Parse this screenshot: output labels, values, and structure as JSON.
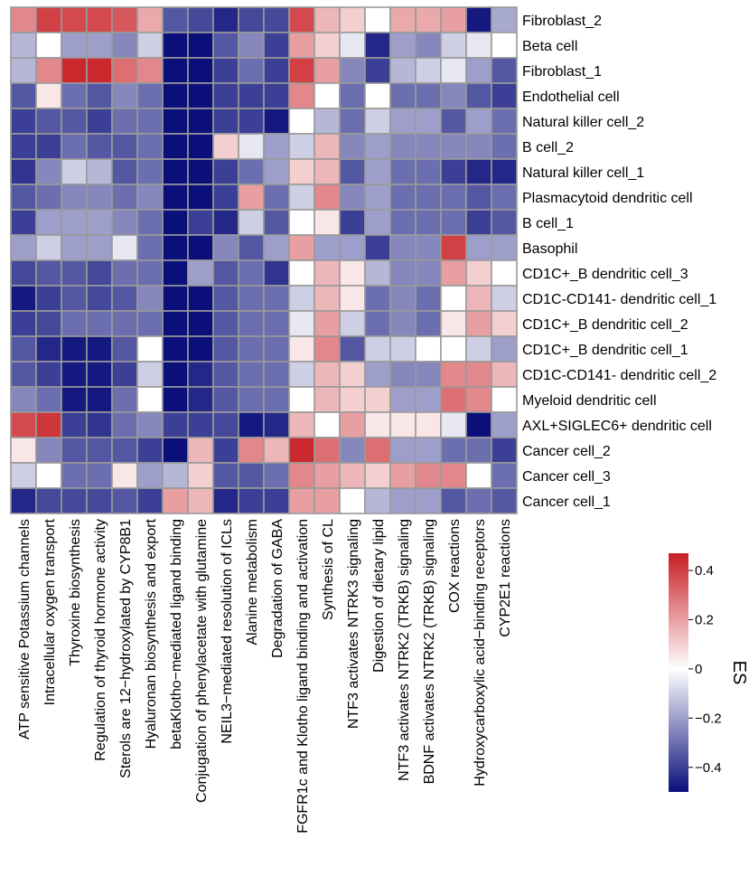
{
  "chart_data": {
    "type": "heatmap",
    "title": "",
    "rows": [
      "Fibroblast_2",
      "Beta cell",
      "Fibroblast_1",
      "Endothelial cell",
      "Natural killer cell_2",
      "B cell_2",
      "Natural killer cell_1",
      "Plasmacytoid dendritic cell",
      "B cell_1",
      "Basophil",
      "CD1C+_B dendritic cell_3",
      "CD1C-CD141- dendritic cell_1",
      "CD1C+_B dendritic cell_2",
      "CD1C+_B dendritic cell_1",
      "CD1C-CD141- dendritic cell_2",
      "Myeloid dendritic cell",
      "AXL+SIGLEC6+ dendritic cell",
      "Cancer cell_2",
      "Cancer cell_3",
      "Cancer cell_1"
    ],
    "columns": [
      "ATP sensitive Potassium channels",
      "Intracellular oxygen transport",
      "Thyroxine biosynthesis",
      "Regulation of thyroid hormone activity",
      "Sterols are 12−hydroxylated by CYP8B1",
      "Hyaluronan biosynthesis and export",
      "betaKlotho−mediated ligand binding",
      "Conjugation of phenylacetate with glutamine",
      "NEIL3−mediated resolution of ICLs",
      "Alanine metabolism",
      "Degradation of GABA",
      "FGFR1c and Klotho ligand binding and activation",
      "Synthesis of CL",
      "NTF3 activates NTRK3 signaling",
      "Digestion of dietary lipid",
      "NTF3 activates NTRK2 (TRKB) signaling",
      "BDNF activates NTRK2 (TRKB) signaling",
      "COX reactions",
      "Hydroxycarboxylic acid−binding receptors",
      "CYP2E1 reactions"
    ],
    "values": [
      [
        0.25,
        0.4,
        0.38,
        0.38,
        0.35,
        0.18,
        -0.35,
        -0.38,
        -0.45,
        -0.38,
        -0.38,
        0.38,
        0.15,
        0.1,
        0.0,
        0.18,
        0.18,
        0.2,
        -0.48,
        -0.18
      ],
      [
        -0.15,
        0.0,
        -0.2,
        -0.2,
        -0.25,
        -0.1,
        -0.5,
        -0.5,
        -0.35,
        -0.25,
        -0.4,
        0.2,
        0.1,
        -0.05,
        -0.45,
        -0.2,
        -0.25,
        -0.1,
        -0.05,
        0.0
      ],
      [
        -0.15,
        0.25,
        0.45,
        0.45,
        0.3,
        0.25,
        -0.5,
        -0.5,
        -0.4,
        -0.3,
        -0.4,
        0.4,
        0.2,
        -0.25,
        -0.4,
        -0.15,
        -0.1,
        -0.05,
        -0.2,
        -0.35
      ],
      [
        -0.35,
        0.05,
        -0.3,
        -0.35,
        -0.25,
        -0.3,
        -0.5,
        -0.5,
        -0.4,
        -0.4,
        -0.4,
        0.25,
        0.0,
        -0.3,
        0.0,
        -0.3,
        -0.3,
        -0.25,
        -0.35,
        -0.4
      ],
      [
        -0.4,
        -0.35,
        -0.35,
        -0.4,
        -0.3,
        -0.3,
        -0.5,
        -0.5,
        -0.4,
        -0.4,
        -0.48,
        0.0,
        -0.15,
        -0.3,
        -0.1,
        -0.2,
        -0.2,
        -0.35,
        -0.2,
        -0.3
      ],
      [
        -0.4,
        -0.4,
        -0.3,
        -0.35,
        -0.35,
        -0.3,
        -0.5,
        -0.5,
        0.1,
        -0.05,
        -0.2,
        -0.1,
        0.15,
        -0.25,
        -0.2,
        -0.25,
        -0.25,
        -0.25,
        -0.25,
        -0.3
      ],
      [
        -0.42,
        -0.25,
        -0.1,
        -0.15,
        -0.35,
        -0.3,
        -0.5,
        -0.5,
        -0.4,
        -0.3,
        -0.2,
        0.1,
        0.15,
        -0.35,
        -0.2,
        -0.3,
        -0.3,
        -0.4,
        -0.45,
        -0.45
      ],
      [
        -0.35,
        -0.3,
        -0.25,
        -0.25,
        -0.3,
        -0.25,
        -0.5,
        -0.5,
        -0.4,
        0.2,
        -0.3,
        -0.1,
        0.25,
        -0.25,
        -0.2,
        -0.3,
        -0.3,
        -0.3,
        -0.35,
        -0.3
      ],
      [
        -0.4,
        -0.2,
        -0.2,
        -0.2,
        -0.25,
        -0.3,
        -0.5,
        -0.4,
        -0.45,
        -0.1,
        -0.35,
        0.0,
        0.05,
        -0.4,
        -0.2,
        -0.3,
        -0.3,
        -0.3,
        -0.4,
        -0.35
      ],
      [
        -0.2,
        -0.1,
        -0.2,
        -0.2,
        -0.05,
        -0.3,
        -0.5,
        -0.5,
        -0.25,
        -0.35,
        -0.2,
        0.2,
        -0.2,
        -0.2,
        -0.4,
        -0.25,
        -0.25,
        0.4,
        -0.2,
        -0.2
      ],
      [
        -0.38,
        -0.35,
        -0.35,
        -0.38,
        -0.3,
        -0.3,
        -0.5,
        -0.2,
        -0.35,
        -0.3,
        -0.42,
        0.0,
        0.15,
        0.05,
        -0.15,
        -0.25,
        -0.25,
        0.2,
        0.1,
        0.0
      ],
      [
        -0.48,
        -0.4,
        -0.35,
        -0.38,
        -0.35,
        -0.25,
        -0.5,
        -0.5,
        -0.35,
        -0.3,
        -0.3,
        -0.1,
        0.15,
        0.05,
        -0.3,
        -0.25,
        -0.3,
        0.0,
        0.15,
        -0.1
      ],
      [
        -0.4,
        -0.38,
        -0.3,
        -0.3,
        -0.3,
        -0.3,
        -0.5,
        -0.5,
        -0.35,
        -0.3,
        -0.3,
        -0.05,
        0.2,
        -0.1,
        -0.3,
        -0.25,
        -0.3,
        0.05,
        0.2,
        0.1
      ],
      [
        -0.35,
        -0.45,
        -0.48,
        -0.48,
        -0.35,
        0.0,
        -0.5,
        -0.5,
        -0.35,
        -0.3,
        -0.3,
        0.05,
        0.25,
        -0.35,
        -0.1,
        -0.1,
        0.0,
        0.0,
        -0.1,
        -0.2
      ],
      [
        -0.35,
        -0.4,
        -0.48,
        -0.48,
        -0.4,
        -0.1,
        -0.5,
        -0.45,
        -0.35,
        -0.3,
        -0.3,
        -0.1,
        0.15,
        0.1,
        -0.2,
        -0.25,
        -0.25,
        0.25,
        0.25,
        0.15
      ],
      [
        -0.25,
        -0.3,
        -0.48,
        -0.48,
        -0.3,
        0.0,
        -0.5,
        -0.45,
        -0.35,
        -0.3,
        -0.3,
        0.0,
        0.15,
        0.1,
        0.1,
        -0.2,
        -0.2,
        0.3,
        0.25,
        0.0
      ],
      [
        0.38,
        0.42,
        -0.4,
        -0.42,
        -0.3,
        -0.25,
        -0.4,
        -0.4,
        -0.38,
        -0.48,
        -0.45,
        0.15,
        0.0,
        0.2,
        0.05,
        0.05,
        0.05,
        -0.05,
        -0.5,
        -0.2
      ],
      [
        0.05,
        -0.25,
        -0.35,
        -0.35,
        -0.35,
        -0.4,
        -0.5,
        0.15,
        -0.4,
        0.25,
        0.15,
        0.45,
        0.3,
        -0.25,
        0.3,
        -0.2,
        -0.2,
        -0.3,
        -0.3,
        -0.4
      ],
      [
        -0.1,
        0.0,
        -0.3,
        -0.3,
        0.05,
        -0.2,
        -0.15,
        0.1,
        -0.35,
        -0.35,
        -0.3,
        0.25,
        0.2,
        0.15,
        0.1,
        0.2,
        0.25,
        0.25,
        0.0,
        -0.3
      ],
      [
        -0.45,
        -0.38,
        -0.38,
        -0.38,
        -0.35,
        -0.4,
        0.2,
        0.15,
        -0.45,
        -0.4,
        -0.4,
        0.2,
        0.2,
        0.0,
        -0.15,
        -0.2,
        -0.2,
        -0.35,
        -0.3,
        -0.35
      ]
    ],
    "colorbar": {
      "label": "ES",
      "ticks": [
        {
          "value": 0.4,
          "label": "0.4"
        },
        {
          "value": 0.2,
          "label": "0.2"
        },
        {
          "value": 0,
          "label": "0"
        },
        {
          "value": -0.2,
          "label": "−0.2"
        },
        {
          "value": -0.4,
          "label": "−0.4"
        }
      ],
      "range": [
        -0.5,
        0.47
      ]
    },
    "colors": {
      "low": "#0a0f7a",
      "mid": "#ffffff",
      "high": "#c81e24",
      "grid": "#9a9a9a"
    }
  }
}
